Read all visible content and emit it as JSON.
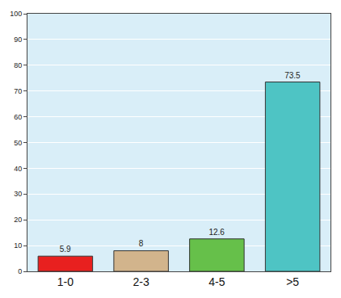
{
  "chart_data": {
    "type": "bar",
    "categories": [
      "1-0",
      "2-3",
      "4-5",
      ">5"
    ],
    "values": [
      5.9,
      8,
      12.6,
      73.5
    ],
    "colors": [
      "#e8201f",
      "#d2b48c",
      "#66c04a",
      "#4ec4c4"
    ],
    "ylim": [
      0,
      100
    ],
    "yticks": [
      0,
      10,
      20,
      30,
      40,
      50,
      60,
      70,
      80,
      90,
      100
    ],
    "grid": true,
    "data_labels": true
  }
}
